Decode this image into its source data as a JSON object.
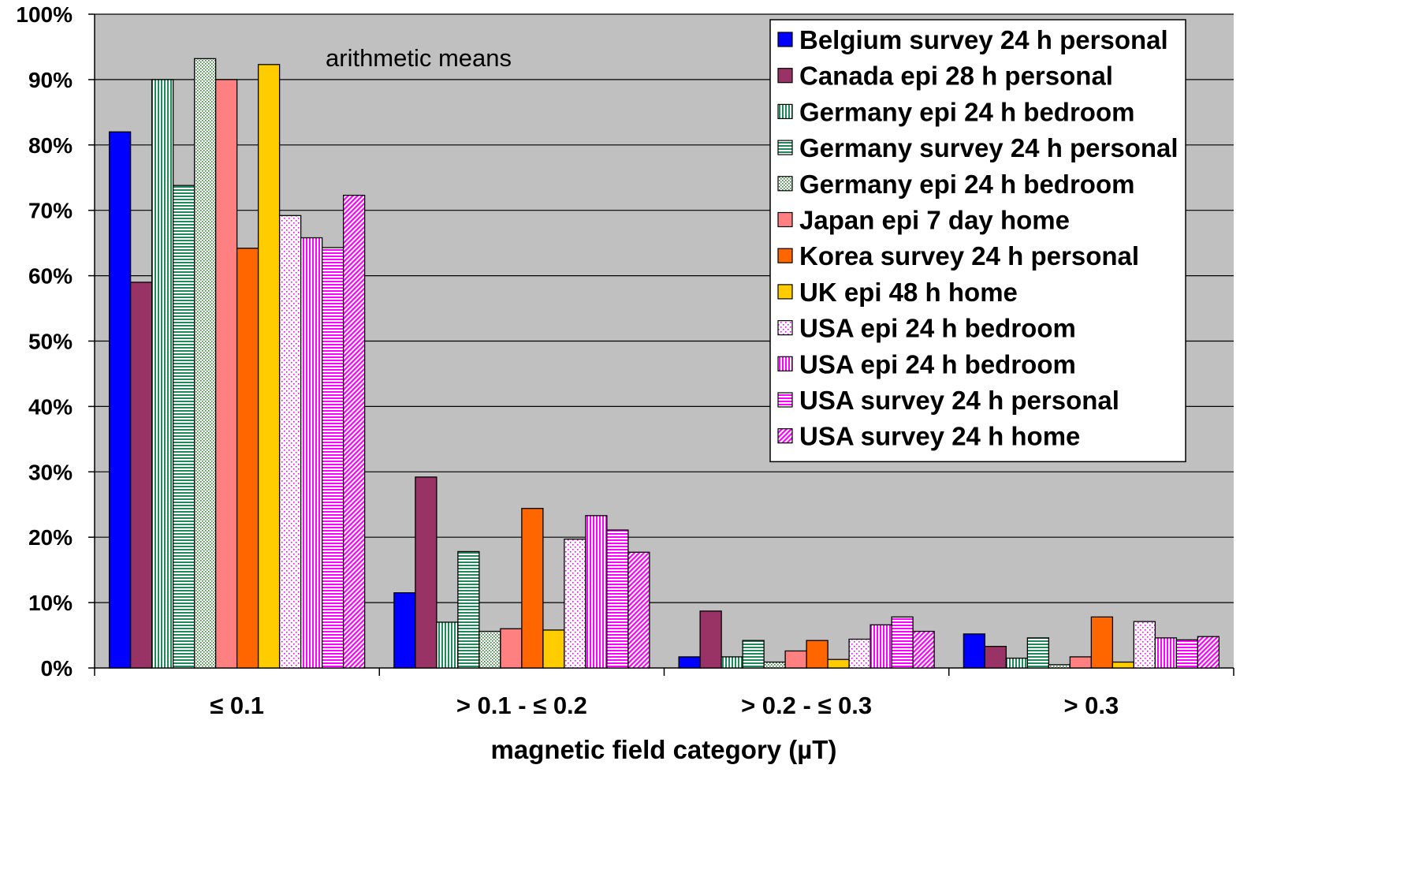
{
  "chart_data": {
    "type": "bar",
    "title": "",
    "annotation": "arithmetic means",
    "xlabel": "magnetic field category (µT)",
    "ylabel": "",
    "ylim": [
      0,
      100
    ],
    "yticks": [
      "0%",
      "10%",
      "20%",
      "30%",
      "40%",
      "50%",
      "60%",
      "70%",
      "80%",
      "90%",
      "100%"
    ],
    "grid": true,
    "legend_position": "top-right",
    "categories": [
      "≤ 0.1",
      "> 0.1 - ≤ 0.2",
      "> 0.2 - ≤ 0.3",
      "> 0.3"
    ],
    "series": [
      {
        "name": "Belgium survey 24 h personal",
        "color": "#0000FF",
        "pattern": "solid",
        "values": [
          82,
          11.5,
          1.7,
          5.2
        ]
      },
      {
        "name": "Canada epi 28 h personal",
        "color": "#993366",
        "pattern": "solid",
        "values": [
          59,
          29.2,
          8.7,
          3.3
        ]
      },
      {
        "name": "Germany epi 24 h bedroom",
        "color": "#1E8A5A",
        "pattern": "vlines",
        "values": [
          90,
          7,
          1.7,
          1.5
        ]
      },
      {
        "name": "Germany survey 24 h personal",
        "color": "#1E8A5A",
        "pattern": "hlines",
        "values": [
          73.8,
          17.8,
          4.2,
          4.6
        ]
      },
      {
        "name": "Germany epi 24 h bedroom",
        "color": "#2E7D32",
        "pattern": "dots",
        "values": [
          93.2,
          5.6,
          0.9,
          0.5
        ]
      },
      {
        "name": "Japan epi 7 day home",
        "color": "#FF8080",
        "pattern": "solid",
        "values": [
          90,
          6,
          2.6,
          1.7
        ]
      },
      {
        "name": "Korea survey 24 h personal",
        "color": "#FF6600",
        "pattern": "solid",
        "values": [
          64.2,
          24.4,
          4.2,
          7.8
        ]
      },
      {
        "name": "UK epi 48 h home",
        "color": "#FFCC00",
        "pattern": "solid",
        "values": [
          92.3,
          5.8,
          1.3,
          0.9
        ]
      },
      {
        "name": "USA epi 24 h bedroom",
        "color": "#FF00FF",
        "pattern": "sparsedots",
        "values": [
          69.2,
          19.7,
          4.4,
          7.1
        ]
      },
      {
        "name": "USA epi 24 h bedroom",
        "color": "#FF00FF",
        "pattern": "vlines",
        "values": [
          65.8,
          23.3,
          6.6,
          4.6
        ]
      },
      {
        "name": "USA survey 24 h personal",
        "color": "#FF00FF",
        "pattern": "hlines",
        "values": [
          64.3,
          21.1,
          7.8,
          4.3
        ]
      },
      {
        "name": "USA survey 24 h home",
        "color": "#FF00FF",
        "pattern": "diag",
        "values": [
          72.3,
          17.7,
          5.6,
          4.8
        ]
      }
    ]
  }
}
